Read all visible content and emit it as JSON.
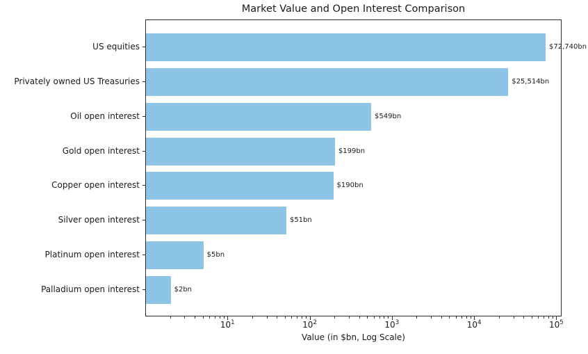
{
  "chart_data": {
    "type": "bar",
    "orientation": "horizontal",
    "title": "Market Value and Open Interest Comparison",
    "xlabel": "Value (in $bn, Log Scale)",
    "ylabel": "",
    "xscale": "log",
    "xlim": [
      1,
      116000
    ],
    "grid": false,
    "legend": false,
    "bar_color": "#8dc3e5",
    "categories": [
      "US equities",
      "Privately owned US Treasuries",
      "Oil open interest",
      "Gold open interest",
      "Copper open interest",
      "Silver open interest",
      "Platinum open interest",
      "Palladium open interest"
    ],
    "values": [
      72740,
      25514,
      549,
      199,
      190,
      51,
      5,
      2
    ],
    "value_labels": [
      "$72,740bn",
      "$25,514bn",
      "$549bn",
      "$199bn",
      "$190bn",
      "$51bn",
      "$5bn",
      "$2bn"
    ],
    "xticks": [
      {
        "value": 10,
        "base": "10",
        "exp": "1"
      },
      {
        "value": 100,
        "base": "10",
        "exp": "2"
      },
      {
        "value": 1000,
        "base": "10",
        "exp": "3"
      },
      {
        "value": 10000,
        "base": "10",
        "exp": "4"
      },
      {
        "value": 100000,
        "base": "10",
        "exp": "5"
      }
    ]
  }
}
